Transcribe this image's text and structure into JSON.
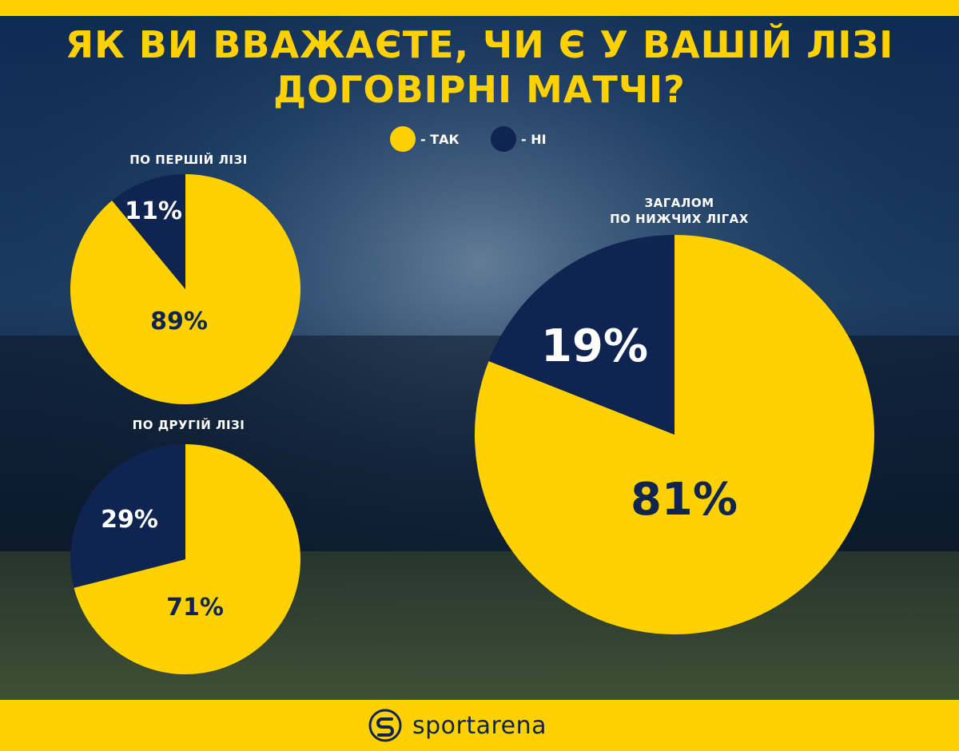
{
  "title_line1": "ЯК ВИ ВВАЖАЄТЕ, ЧИ Є У ВАШІЙ ЛІЗІ",
  "title_line2": "ДОГОВІРНІ МАТЧІ?",
  "legend": [
    {
      "label": "- ТАК",
      "color": "#ffd100"
    },
    {
      "label": "- НІ",
      "color": "#0f2450"
    }
  ],
  "colors": {
    "yes": "#ffd100",
    "no": "#0f2450",
    "accent": "#ffd100",
    "background": "#0a1a33"
  },
  "brand": {
    "name": "sportarena",
    "icon": "sportarena-logo-icon"
  },
  "chart_data": [
    {
      "type": "pie",
      "title": "ПО ПЕРШІЙ ЛІЗІ",
      "categories": [
        "ТАК",
        "НІ"
      ],
      "values": [
        89,
        11
      ],
      "labels": [
        "89%",
        "11%"
      ]
    },
    {
      "type": "pie",
      "title": "ПО ДРУГІЙ ЛІЗІ",
      "categories": [
        "ТАК",
        "НІ"
      ],
      "values": [
        71,
        29
      ],
      "labels": [
        "71%",
        "29%"
      ]
    },
    {
      "type": "pie",
      "title": "ЗАГАЛОМ ПО НИЖЧИХ ЛІГАХ",
      "title_lines": [
        "ЗАГАЛОМ",
        "ПО НИЖЧИХ ЛІГАХ"
      ],
      "categories": [
        "ТАК",
        "НІ"
      ],
      "values": [
        81,
        19
      ],
      "labels": [
        "81%",
        "19%"
      ]
    }
  ]
}
